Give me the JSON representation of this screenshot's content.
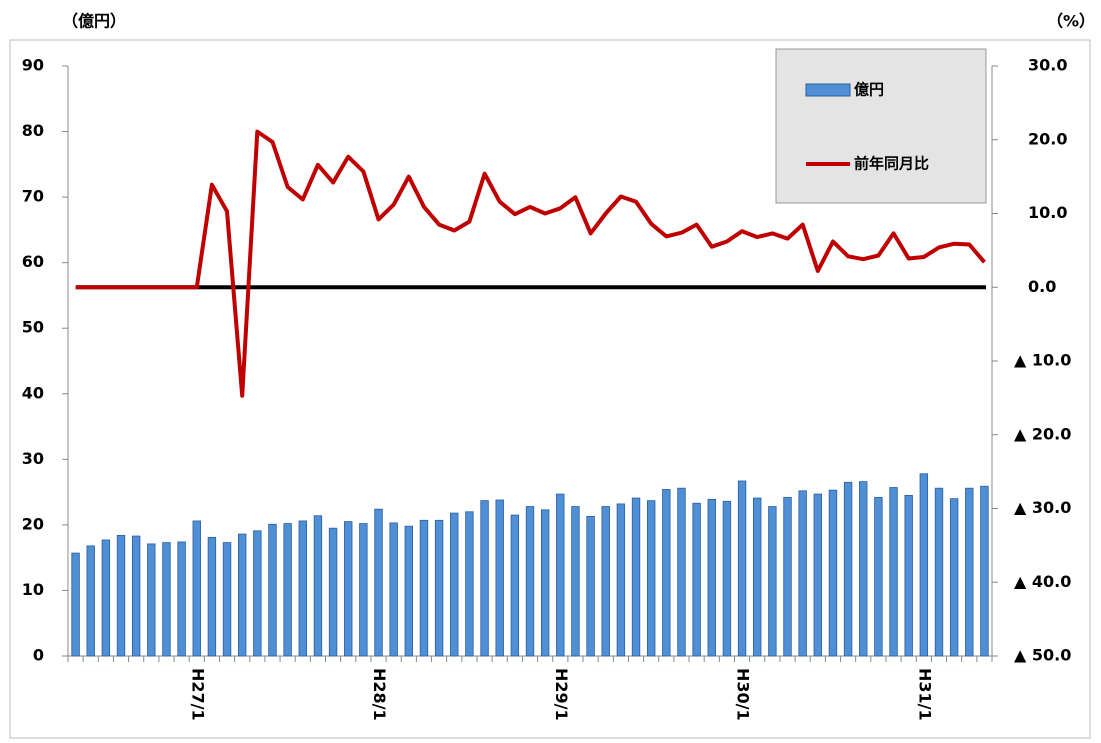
{
  "chart_data": {
    "type": "bar",
    "y_label": "（億円）",
    "y2_label": "（%）",
    "categories": [
      null,
      null,
      null,
      null,
      null,
      null,
      null,
      null,
      "H27/1",
      null,
      null,
      null,
      null,
      null,
      null,
      null,
      null,
      null,
      null,
      null,
      "H28/1",
      null,
      null,
      null,
      null,
      null,
      null,
      null,
      null,
      null,
      null,
      null,
      "H29/1",
      null,
      null,
      null,
      null,
      null,
      null,
      null,
      null,
      null,
      null,
      null,
      "H30/1",
      null,
      null,
      null,
      null,
      null,
      null,
      null,
      null,
      null,
      null,
      null,
      "H31/1",
      null,
      null,
      null,
      null
    ],
    "series": [
      {
        "name": "億円",
        "type": "bar",
        "color": "#4f8fd6",
        "values": [
          15.7,
          16.8,
          17.7,
          18.4,
          18.3,
          17.1,
          17.3,
          17.4,
          20.6,
          18.1,
          17.3,
          18.6,
          19.1,
          20.1,
          20.2,
          20.6,
          21.4,
          19.5,
          20.5,
          20.2,
          22.4,
          20.3,
          19.8,
          20.7,
          20.7,
          21.8,
          22.0,
          23.7,
          23.8,
          21.5,
          22.8,
          22.3,
          24.7,
          22.8,
          21.3,
          22.8,
          23.2,
          24.1,
          23.7,
          25.4,
          25.6,
          23.3,
          23.9,
          23.6,
          26.7,
          24.1,
          22.8,
          24.2,
          25.2,
          24.7,
          25.3,
          26.5,
          26.6,
          24.2,
          25.7,
          24.5,
          27.8,
          25.6,
          24.0,
          25.6,
          25.9
        ]
      },
      {
        "name": "前年同月比",
        "type": "line",
        "axis": "y2",
        "color": "#c00000",
        "values": [
          0,
          0,
          0,
          0,
          0,
          0,
          0,
          0,
          0,
          13.9,
          10.3,
          -14.7,
          21.1,
          19.7,
          13.6,
          11.9,
          16.6,
          14.2,
          17.7,
          15.7,
          9.2,
          11.2,
          15.0,
          10.9,
          8.5,
          7.7,
          8.9,
          15.4,
          11.6,
          9.9,
          10.9,
          10.0,
          10.7,
          12.2,
          7.3,
          10.0,
          12.3,
          11.6,
          8.6,
          6.9,
          7.4,
          8.5,
          5.5,
          6.2,
          7.6,
          6.8,
          7.3,
          6.6,
          8.5,
          2.2,
          6.2,
          4.2,
          3.8,
          4.3,
          7.3,
          3.9,
          4.1,
          5.4,
          5.9,
          5.8,
          3.4
        ]
      }
    ],
    "ylim": [
      0,
      90
    ],
    "yticks": [
      0,
      10,
      20,
      30,
      40,
      50,
      60,
      70,
      80,
      90
    ],
    "y2lim": [
      -50,
      30
    ],
    "y2ticks": [
      {
        "value": 30,
        "label": "30.0"
      },
      {
        "value": 20,
        "label": "20.0"
      },
      {
        "value": 10,
        "label": "10.0"
      },
      {
        "value": 0,
        "label": "0.0"
      },
      {
        "value": -10,
        "label": "▲ 10.0"
      },
      {
        "value": -20,
        "label": "▲ 20.0"
      },
      {
        "value": -30,
        "label": "▲ 30.0"
      },
      {
        "value": -40,
        "label": "▲ 40.0"
      },
      {
        "value": -50,
        "label": "▲ 50.0"
      }
    ],
    "legend": "top-right",
    "grid": false
  }
}
